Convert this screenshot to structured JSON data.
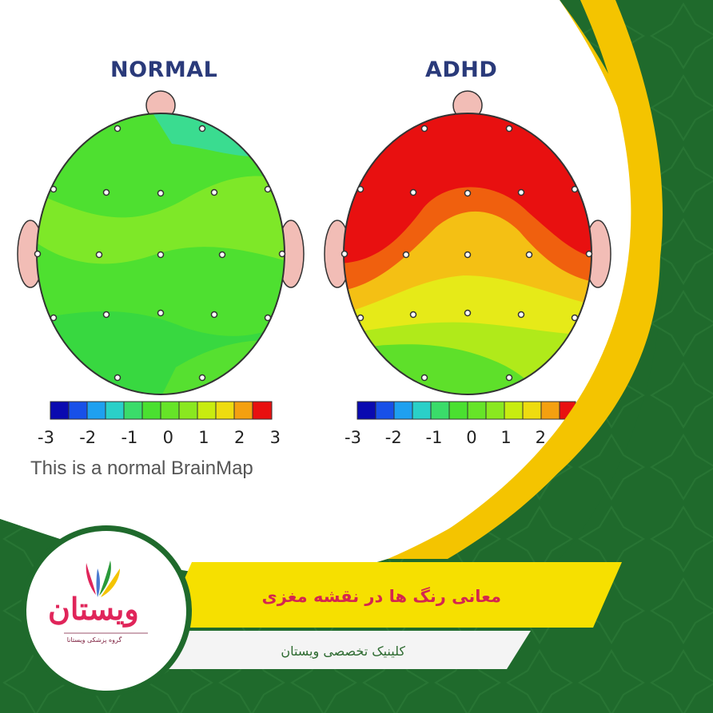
{
  "normal_map": {
    "title": "NORMAL",
    "scale_labels": [
      "-3",
      "-2",
      "-1",
      "0",
      "1",
      "2",
      "3"
    ],
    "caption": "This is a normal BrainMap"
  },
  "adhd_map": {
    "title": "ADHD",
    "scale_labels": [
      "-3",
      "-2",
      "-1",
      "0",
      "1",
      "2"
    ]
  },
  "banner": {
    "title": "معانی رنگ ها در نقشه مغزی",
    "subtitle": "کلینیک تخصصی ویستان"
  },
  "logo": {
    "word": "ویستان",
    "tagline": "گروه پزشکی ویستانا"
  },
  "colors": {
    "background_green": "#1f6a2c",
    "accent_yellow": "#f4d400",
    "brand_pink": "#d4264f",
    "scale": [
      "#0a0ab0",
      "#1850e8",
      "#1ea0f0",
      "#2ad0c8",
      "#3adc6a",
      "#4ae030",
      "#8ae820",
      "#c8ec10",
      "#eedc10",
      "#f4a010",
      "#f06010",
      "#e81010"
    ]
  }
}
